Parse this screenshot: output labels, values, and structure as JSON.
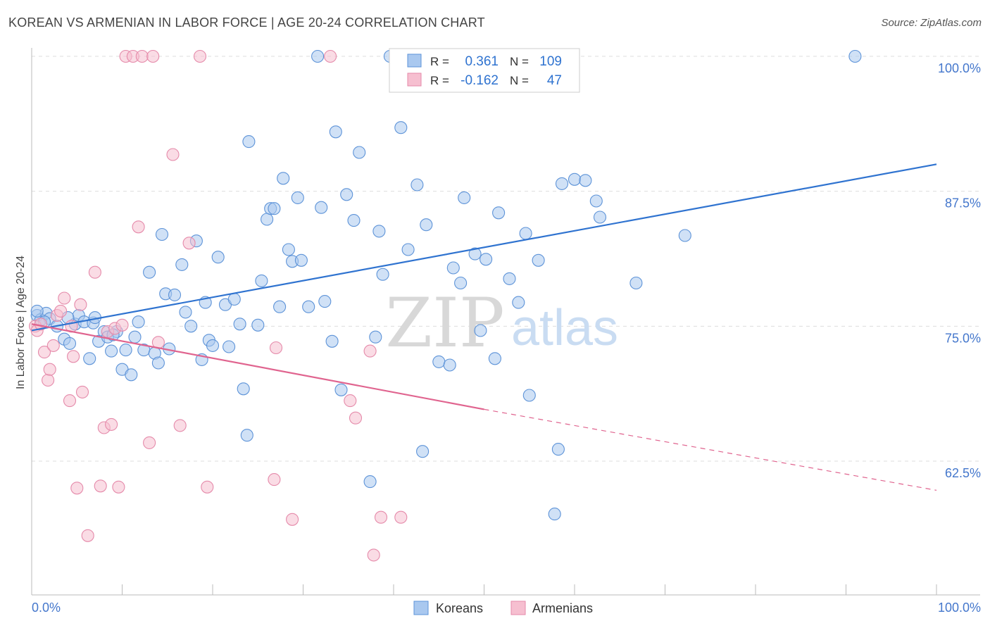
{
  "header": {
    "title": "KOREAN VS ARMENIAN IN LABOR FORCE | AGE 20-24 CORRELATION CHART",
    "source": "Source: ZipAtlas.com"
  },
  "watermark": {
    "zip": "ZIP",
    "atlas": "atlas"
  },
  "colors": {
    "koreans_fill": "#a9c8ef",
    "koreans_stroke": "#5d93d8",
    "koreans_line": "#2f73d0",
    "armenians_fill": "#f6bfd0",
    "armenians_stroke": "#e58aaa",
    "armenians_line": "#e0648f",
    "axis_label_blue": "#4477cc",
    "grid": "#dddddd"
  },
  "legend": {
    "rows": [
      {
        "r_label": "R =",
        "r_value": "0.361",
        "n_label": "N =",
        "n_value": "109"
      },
      {
        "r_label": "R =",
        "r_value": "-0.162",
        "n_label": "N =",
        "n_value": "47"
      }
    ]
  },
  "bottom_legend": {
    "items": [
      "Koreans",
      "Armenians"
    ]
  },
  "chart_data": {
    "type": "scatter",
    "ylabel": "In Labor Force | Age 20-24",
    "xlim": [
      0,
      100
    ],
    "ylim": [
      51,
      102
    ],
    "x_tick_labels": [
      "0.0%",
      "100.0%"
    ],
    "y_ticks": [
      {
        "value": 100,
        "label": "100.0%"
      },
      {
        "value": 87.5,
        "label": "87.5%"
      },
      {
        "value": 75,
        "label": "75.0%"
      },
      {
        "value": 62.5,
        "label": "62.5%"
      }
    ],
    "grid": "dashed horizontal",
    "series": [
      {
        "name": "Koreans",
        "trend": {
          "x": [
            0,
            100
          ],
          "y": [
            74.6,
            90.0
          ],
          "style": "solid"
        },
        "points": [
          [
            0.6,
            76.0
          ],
          [
            1.0,
            75.6
          ],
          [
            1.6,
            76.2
          ],
          [
            2.0,
            75.7
          ],
          [
            2.8,
            75.0
          ],
          [
            3.6,
            73.8
          ],
          [
            4.2,
            73.4
          ],
          [
            4.8,
            75.2
          ],
          [
            5.2,
            76.0
          ],
          [
            5.8,
            75.4
          ],
          [
            6.4,
            72.0
          ],
          [
            6.8,
            75.3
          ],
          [
            7.4,
            73.6
          ],
          [
            8.0,
            74.5
          ],
          [
            8.4,
            74.0
          ],
          [
            8.8,
            72.7
          ],
          [
            9.4,
            74.5
          ],
          [
            10.0,
            71.0
          ],
          [
            10.4,
            72.8
          ],
          [
            11.0,
            70.5
          ],
          [
            11.4,
            74.0
          ],
          [
            11.8,
            75.4
          ],
          [
            12.4,
            72.8
          ],
          [
            13.0,
            80.0
          ],
          [
            13.6,
            72.5
          ],
          [
            14.0,
            71.6
          ],
          [
            14.4,
            83.5
          ],
          [
            14.8,
            78.0
          ],
          [
            15.2,
            72.9
          ],
          [
            15.8,
            77.9
          ],
          [
            16.6,
            80.7
          ],
          [
            17.0,
            76.3
          ],
          [
            17.6,
            75.0
          ],
          [
            18.2,
            82.9
          ],
          [
            18.8,
            71.9
          ],
          [
            19.2,
            77.2
          ],
          [
            19.6,
            73.7
          ],
          [
            20.0,
            73.2
          ],
          [
            20.6,
            81.4
          ],
          [
            21.4,
            77.0
          ],
          [
            21.8,
            73.1
          ],
          [
            22.4,
            77.5
          ],
          [
            23.0,
            75.2
          ],
          [
            23.4,
            69.2
          ],
          [
            23.8,
            64.9
          ],
          [
            24.0,
            92.1
          ],
          [
            25.0,
            75.1
          ],
          [
            25.4,
            79.2
          ],
          [
            26.0,
            84.9
          ],
          [
            26.4,
            85.9
          ],
          [
            26.8,
            85.9
          ],
          [
            27.4,
            76.8
          ],
          [
            27.8,
            88.7
          ],
          [
            28.4,
            82.1
          ],
          [
            28.8,
            81.0
          ],
          [
            29.4,
            86.9
          ],
          [
            29.8,
            81.1
          ],
          [
            30.6,
            76.8
          ],
          [
            31.6,
            100.0
          ],
          [
            32.0,
            86.0
          ],
          [
            32.4,
            77.3
          ],
          [
            33.2,
            73.6
          ],
          [
            33.6,
            93.0
          ],
          [
            34.2,
            69.1
          ],
          [
            34.8,
            87.2
          ],
          [
            35.6,
            84.8
          ],
          [
            36.2,
            91.1
          ],
          [
            37.4,
            60.6
          ],
          [
            38.0,
            74.0
          ],
          [
            38.4,
            83.8
          ],
          [
            38.8,
            79.8
          ],
          [
            39.6,
            100.0
          ],
          [
            40.2,
            100.0
          ],
          [
            40.8,
            93.4
          ],
          [
            41.2,
            100.0
          ],
          [
            41.6,
            82.1
          ],
          [
            42.6,
            88.1
          ],
          [
            43.2,
            63.4
          ],
          [
            43.6,
            84.4
          ],
          [
            45.0,
            71.7
          ],
          [
            46.2,
            71.4
          ],
          [
            46.6,
            80.4
          ],
          [
            47.4,
            79.0
          ],
          [
            47.8,
            86.9
          ],
          [
            49.0,
            81.7
          ],
          [
            49.6,
            74.6
          ],
          [
            50.2,
            81.2
          ],
          [
            51.2,
            72.0
          ],
          [
            51.6,
            85.5
          ],
          [
            52.8,
            79.4
          ],
          [
            53.8,
            77.2
          ],
          [
            54.6,
            83.6
          ],
          [
            55.0,
            68.6
          ],
          [
            56.0,
            81.1
          ],
          [
            57.8,
            57.6
          ],
          [
            58.2,
            63.6
          ],
          [
            58.6,
            88.2
          ],
          [
            60.0,
            88.6
          ],
          [
            61.2,
            88.5
          ],
          [
            62.4,
            86.6
          ],
          [
            62.8,
            85.1
          ],
          [
            66.8,
            79.0
          ],
          [
            72.2,
            83.4
          ],
          [
            91.0,
            100.0
          ],
          [
            0.6,
            76.4
          ],
          [
            1.4,
            75.4
          ],
          [
            4.0,
            75.8
          ],
          [
            7.0,
            75.8
          ],
          [
            9.0,
            74.2
          ]
        ]
      },
      {
        "name": "Armenians",
        "trend": {
          "x": [
            0,
            50
          ],
          "y": [
            75.2,
            67.3
          ],
          "style": "solid",
          "extension": {
            "x": [
              50,
              100
            ],
            "y": [
              67.3,
              59.8
            ],
            "style": "dashed"
          }
        },
        "points": [
          [
            0.4,
            75.0
          ],
          [
            0.6,
            74.6
          ],
          [
            1.0,
            75.2
          ],
          [
            1.4,
            72.6
          ],
          [
            1.8,
            70.0
          ],
          [
            2.0,
            71.0
          ],
          [
            2.4,
            73.2
          ],
          [
            2.8,
            76.0
          ],
          [
            3.2,
            76.4
          ],
          [
            3.6,
            77.6
          ],
          [
            4.2,
            68.1
          ],
          [
            4.4,
            75.0
          ],
          [
            4.6,
            72.2
          ],
          [
            5.0,
            60.0
          ],
          [
            5.4,
            77.0
          ],
          [
            5.6,
            68.9
          ],
          [
            6.2,
            55.6
          ],
          [
            7.0,
            80.0
          ],
          [
            7.6,
            60.2
          ],
          [
            8.0,
            65.6
          ],
          [
            8.4,
            74.5
          ],
          [
            8.8,
            65.9
          ],
          [
            9.2,
            74.8
          ],
          [
            9.6,
            60.1
          ],
          [
            10.0,
            75.1
          ],
          [
            10.4,
            100.0
          ],
          [
            11.2,
            100.0
          ],
          [
            11.8,
            84.2
          ],
          [
            12.2,
            100.0
          ],
          [
            13.0,
            64.2
          ],
          [
            13.4,
            100.0
          ],
          [
            14.0,
            73.5
          ],
          [
            15.6,
            90.9
          ],
          [
            16.4,
            65.8
          ],
          [
            17.4,
            82.7
          ],
          [
            18.6,
            100.0
          ],
          [
            19.4,
            60.1
          ],
          [
            26.8,
            60.8
          ],
          [
            27.0,
            73.0
          ],
          [
            28.8,
            57.1
          ],
          [
            33.0,
            100.0
          ],
          [
            35.2,
            68.1
          ],
          [
            35.8,
            66.5
          ],
          [
            37.4,
            72.7
          ],
          [
            37.8,
            53.8
          ],
          [
            38.6,
            57.3
          ],
          [
            40.8,
            57.3
          ]
        ]
      }
    ]
  }
}
